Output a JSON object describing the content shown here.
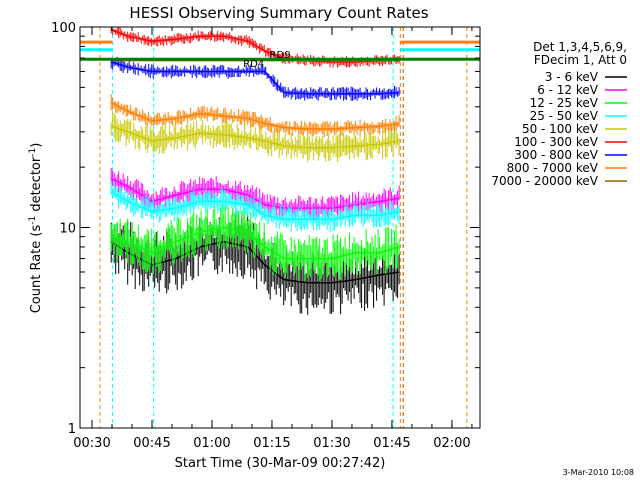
{
  "chart_data": {
    "type": "line",
    "title": "HESSI Observing Summary Count Rates",
    "xlabel": "Start Time (30-Mar-09 00:27:42)",
    "ylabel_prefix": "Count Rate (s",
    "ylabel_sup": "-1",
    "ylabel_mid": " detector",
    "ylabel_suffix": ")",
    "y_scale": "log",
    "ylim": [
      1,
      100
    ],
    "xlim": [
      0.45,
      2.117
    ],
    "x_ticks": [
      {
        "label": "00:30",
        "value": 0.5
      },
      {
        "label": "00:45",
        "value": 0.75
      },
      {
        "label": "01:00",
        "value": 1.0
      },
      {
        "label": "01:15",
        "value": 1.25
      },
      {
        "label": "01:30",
        "value": 1.5
      },
      {
        "label": "01:45",
        "value": 1.75
      },
      {
        "label": "02:00",
        "value": 2.0
      }
    ],
    "y_ticks": [
      {
        "label": "1",
        "value": 1
      },
      {
        "label": "10",
        "value": 10
      },
      {
        "label": "100",
        "value": 100
      }
    ],
    "legend": {
      "position": "right",
      "header": [
        "Det 1,3,4,5,6,9,",
        "FDecim 1, Att 0"
      ]
    },
    "series": [
      {
        "name": "3 - 6 keV",
        "color": "#000000",
        "x": [
          0.58,
          0.65,
          0.75,
          0.85,
          0.95,
          1.05,
          1.15,
          1.22,
          1.3,
          1.4,
          1.5,
          1.6,
          1.7,
          1.78
        ],
        "y": [
          8.5,
          7.5,
          6.5,
          7.0,
          8.0,
          8.5,
          8.0,
          6.5,
          5.5,
          5.3,
          5.3,
          5.5,
          5.8,
          6.0
        ]
      },
      {
        "name": "6 - 12 keV",
        "color": "#ff00ff",
        "x": [
          0.58,
          0.65,
          0.75,
          0.85,
          0.95,
          1.05,
          1.15,
          1.22,
          1.3,
          1.4,
          1.5,
          1.6,
          1.7,
          1.78
        ],
        "y": [
          17.5,
          16.0,
          13.5,
          14.5,
          15.5,
          15.5,
          14.5,
          13.0,
          12.5,
          12.5,
          12.5,
          13.0,
          13.5,
          14.0
        ]
      },
      {
        "name": "12 - 25 keV",
        "color": "#00ff00",
        "x": [
          0.58,
          0.65,
          0.75,
          0.85,
          0.95,
          1.05,
          1.15,
          1.22,
          1.3,
          1.4,
          1.5,
          1.6,
          1.7,
          1.78
        ],
        "y": [
          9.0,
          8.5,
          7.5,
          8.5,
          9.5,
          10.0,
          9.5,
          8.0,
          7.0,
          7.0,
          7.0,
          7.5,
          7.5,
          8.0
        ]
      },
      {
        "name": "25 - 50 keV",
        "color": "#00ffff",
        "x": [
          0.58,
          0.65,
          0.75,
          0.85,
          0.95,
          1.05,
          1.15,
          1.22,
          1.3,
          1.4,
          1.5,
          1.6,
          1.7,
          1.78
        ],
        "y": [
          15.0,
          13.5,
          12.0,
          12.5,
          13.5,
          13.5,
          13.0,
          11.5,
          11.0,
          11.0,
          11.0,
          11.5,
          11.5,
          12.0
        ]
      },
      {
        "name": "50 - 100 keV",
        "color": "#c8c800",
        "x": [
          0.58,
          0.65,
          0.75,
          0.85,
          0.95,
          1.05,
          1.15,
          1.22,
          1.3,
          1.4,
          1.5,
          1.6,
          1.7,
          1.78
        ],
        "y": [
          32.0,
          30.0,
          27.0,
          28.0,
          29.5,
          29.0,
          28.0,
          27.0,
          25.5,
          25.0,
          25.0,
          25.5,
          26.0,
          27.0
        ]
      },
      {
        "name": "100 - 300 keV",
        "color": "#ff0000",
        "x": [
          0.58,
          0.65,
          0.75,
          0.85,
          0.95,
          1.05,
          1.15,
          1.22,
          1.3,
          1.4,
          1.5,
          1.6,
          1.7,
          1.78
        ],
        "y": [
          97.0,
          90.0,
          85.0,
          87.0,
          90.0,
          90.0,
          85.0,
          76.0,
          70.0,
          68.0,
          67.0,
          67.0,
          68.0,
          70.0
        ]
      },
      {
        "name": "300 - 800 keV",
        "color": "#0000ff",
        "x": [
          0.58,
          0.65,
          0.75,
          0.85,
          0.95,
          1.05,
          1.15,
          1.22,
          1.3,
          1.4,
          1.5,
          1.6,
          1.7,
          1.78
        ],
        "y": [
          67.0,
          63.0,
          60.0,
          60.0,
          60.0,
          60.0,
          60.0,
          60.0,
          47.0,
          46.5,
          46.5,
          46.5,
          46.5,
          47.0
        ]
      },
      {
        "name": "800 - 7000 keV",
        "color": "#ff8000",
        "x": [
          0.58,
          0.65,
          0.75,
          0.85,
          0.95,
          1.05,
          1.15,
          1.22,
          1.3,
          1.4,
          1.5,
          1.6,
          1.7,
          1.78
        ],
        "y": [
          42.0,
          38.0,
          34.0,
          35.0,
          37.0,
          36.0,
          35.0,
          33.0,
          31.5,
          31.0,
          31.0,
          31.5,
          32.0,
          33.0
        ]
      },
      {
        "name": "7000 - 20000 keV",
        "color": "#a06400",
        "x": [
          0.59,
          1.78
        ],
        "y": [
          68.0,
          68.0
        ]
      }
    ],
    "annotations": [
      {
        "text": "RD4",
        "color": "#008000"
      },
      {
        "text": "RD9",
        "color": "#008000"
      }
    ],
    "footer": "3-Mar-2010 10:08"
  }
}
